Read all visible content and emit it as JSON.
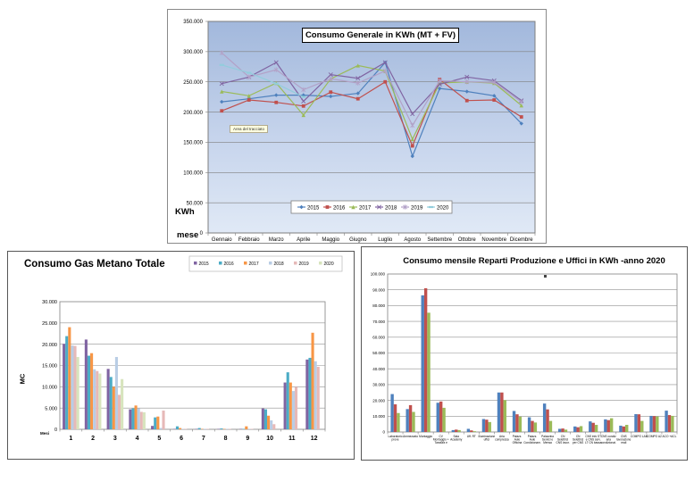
{
  "chart_data": [
    {
      "type": "line",
      "title": "Consumo  Generale  in  KWh  (MT + FV)",
      "ylabel": "KWh",
      "xlabel": "mese",
      "annotation": "Area del tracciato",
      "ymax": 350000,
      "grid": true,
      "legend_position": "bottom-center-inside",
      "y_ticks": [
        "350.000",
        "300.000",
        "250.000",
        "200.000",
        "150.000",
        "100.000",
        "50.000",
        "0"
      ],
      "categories": [
        "Gennaio",
        "Febbraio",
        "Marzo",
        "Aprile",
        "Maggio",
        "Giugno",
        "Luglio",
        "Agosto",
        "Settembre",
        "Ottobre",
        "Novembre",
        "Dicembre"
      ],
      "series": [
        {
          "name": "2015",
          "color": "#4F81BD",
          "marker": "diamond",
          "values": [
            217000,
            222000,
            228000,
            228000,
            226000,
            231000,
            282000,
            127000,
            239000,
            234000,
            227000,
            181000
          ]
        },
        {
          "name": "2016",
          "color": "#C0504D",
          "marker": "square",
          "values": [
            202000,
            220000,
            216000,
            210000,
            233000,
            222000,
            250000,
            144000,
            254000,
            219000,
            220000,
            192000
          ]
        },
        {
          "name": "2017",
          "color": "#9BBB59",
          "marker": "triangle",
          "values": [
            234000,
            227000,
            248000,
            195000,
            255000,
            277000,
            268000,
            155000,
            248000,
            250000,
            248000,
            211000
          ]
        },
        {
          "name": "2018",
          "color": "#8064A2",
          "marker": "x",
          "values": [
            247000,
            258000,
            282000,
            218000,
            262000,
            256000,
            282000,
            197000,
            246000,
            258000,
            252000,
            219000
          ]
        },
        {
          "name": "2019",
          "color": "#B2A1C7",
          "marker": "star",
          "values": [
            298000,
            258000,
            270000,
            237000,
            255000,
            248000,
            268000,
            178000,
            252000,
            250000,
            249000,
            217000
          ]
        },
        {
          "name": "2020",
          "color": "#92CDDC",
          "marker": "dash",
          "values": [
            278000,
            265000,
            247000,
            225000,
            null,
            null,
            null,
            null,
            null,
            null,
            null,
            null
          ]
        }
      ]
    },
    {
      "type": "bar",
      "title": "Consumo Gas Metano Totale",
      "ylabel": "MC",
      "xlabel": "Mesi",
      "ymax": 30000,
      "grid": true,
      "legend_position": "top-right",
      "y_ticks": [
        "30.000",
        "25.000",
        "20.000",
        "15.000",
        "10.000",
        "5.000",
        "0"
      ],
      "categories": [
        "1",
        "2",
        "3",
        "4",
        "5",
        "6",
        "7",
        "8",
        "9",
        "10",
        "11",
        "12"
      ],
      "series": [
        {
          "name": "2015",
          "color": "#8064A2",
          "values": [
            20100,
            21100,
            14200,
            4700,
            800,
            100,
            100,
            100,
            100,
            4900,
            11000,
            16400
          ]
        },
        {
          "name": "2016",
          "color": "#4BACC6",
          "values": [
            21900,
            17300,
            12300,
            4900,
            2800,
            700,
            300,
            200,
            100,
            4700,
            13400,
            16800
          ]
        },
        {
          "name": "2017",
          "color": "#F79646",
          "values": [
            24000,
            17900,
            10000,
            5600,
            3000,
            300,
            100,
            100,
            700,
            3200,
            11000,
            22700
          ]
        },
        {
          "name": "2018",
          "color": "#B9CDE5",
          "values": [
            19700,
            14100,
            17000,
            4900,
            300,
            100,
            100,
            100,
            100,
            2100,
            9000,
            16000
          ]
        },
        {
          "name": "2019",
          "color": "#E6B9B8",
          "values": [
            19600,
            13700,
            8100,
            4100,
            4400,
            100,
            100,
            100,
            100,
            1200,
            10000,
            14700
          ]
        },
        {
          "name": "2020",
          "color": "#D7E4BD",
          "values": [
            17000,
            13100,
            11800,
            4000,
            0,
            0,
            0,
            0,
            0,
            0,
            0,
            0
          ]
        }
      ]
    },
    {
      "type": "bar",
      "title": "Consumo mensile Reparti Produzione e Uffici in KWh -anno 2020",
      "ylabel": "",
      "xlabel": "",
      "ymax": 100000,
      "grid": true,
      "legend_position": "none",
      "y_ticks": [
        "100.000",
        "90.000",
        "80.000",
        "70.000",
        "60.000",
        "50.000",
        "40.000",
        "30.000",
        "20.000",
        "10.000",
        "0"
      ],
      "categories": [
        "Laboratorio prove",
        "Ammezzato",
        "Montaggio",
        "CV Montaggio + Taratura e assist.",
        "Sala Academy",
        "Uff. RT",
        "Illuminazione uffici",
        "Aria compressa",
        "Palazz. Aule Officina",
        "Palazz. Aule Condizionam. Reparti",
        "Palazzina Servizi e Mensa",
        "CN Selettrici CNS lavor. LT",
        "CN Selettrici per CNS M.lavor",
        "CNS info ST e CNS serv. LT CN bassa",
        "CNS condiz aria condizionat. var",
        "CNS lavorazione reali",
        "COMPO LAB",
        "COMPO A2",
        "ACO +ACL"
      ],
      "series": [
        {
          "name": "",
          "color": "#4F81BD",
          "values": [
            24000,
            14500,
            86500,
            18500,
            1200,
            2000,
            8200,
            25000,
            13300,
            9300,
            18000,
            2000,
            3500,
            6700,
            8000,
            4000,
            11300,
            10200,
            13500
          ]
        },
        {
          "name": "",
          "color": "#C0504D",
          "values": [
            17500,
            17000,
            91000,
            19300,
            1500,
            1000,
            7800,
            25000,
            11200,
            7000,
            14300,
            2200,
            3000,
            5800,
            7500,
            3500,
            11200,
            10000,
            10700
          ]
        },
        {
          "name": "",
          "color": "#9BBB59",
          "values": [
            12000,
            12700,
            75500,
            15300,
            1200,
            500,
            6300,
            20200,
            9700,
            6000,
            7000,
            1500,
            3700,
            4500,
            8700,
            4500,
            7000,
            9800,
            10200
          ]
        }
      ]
    }
  ]
}
